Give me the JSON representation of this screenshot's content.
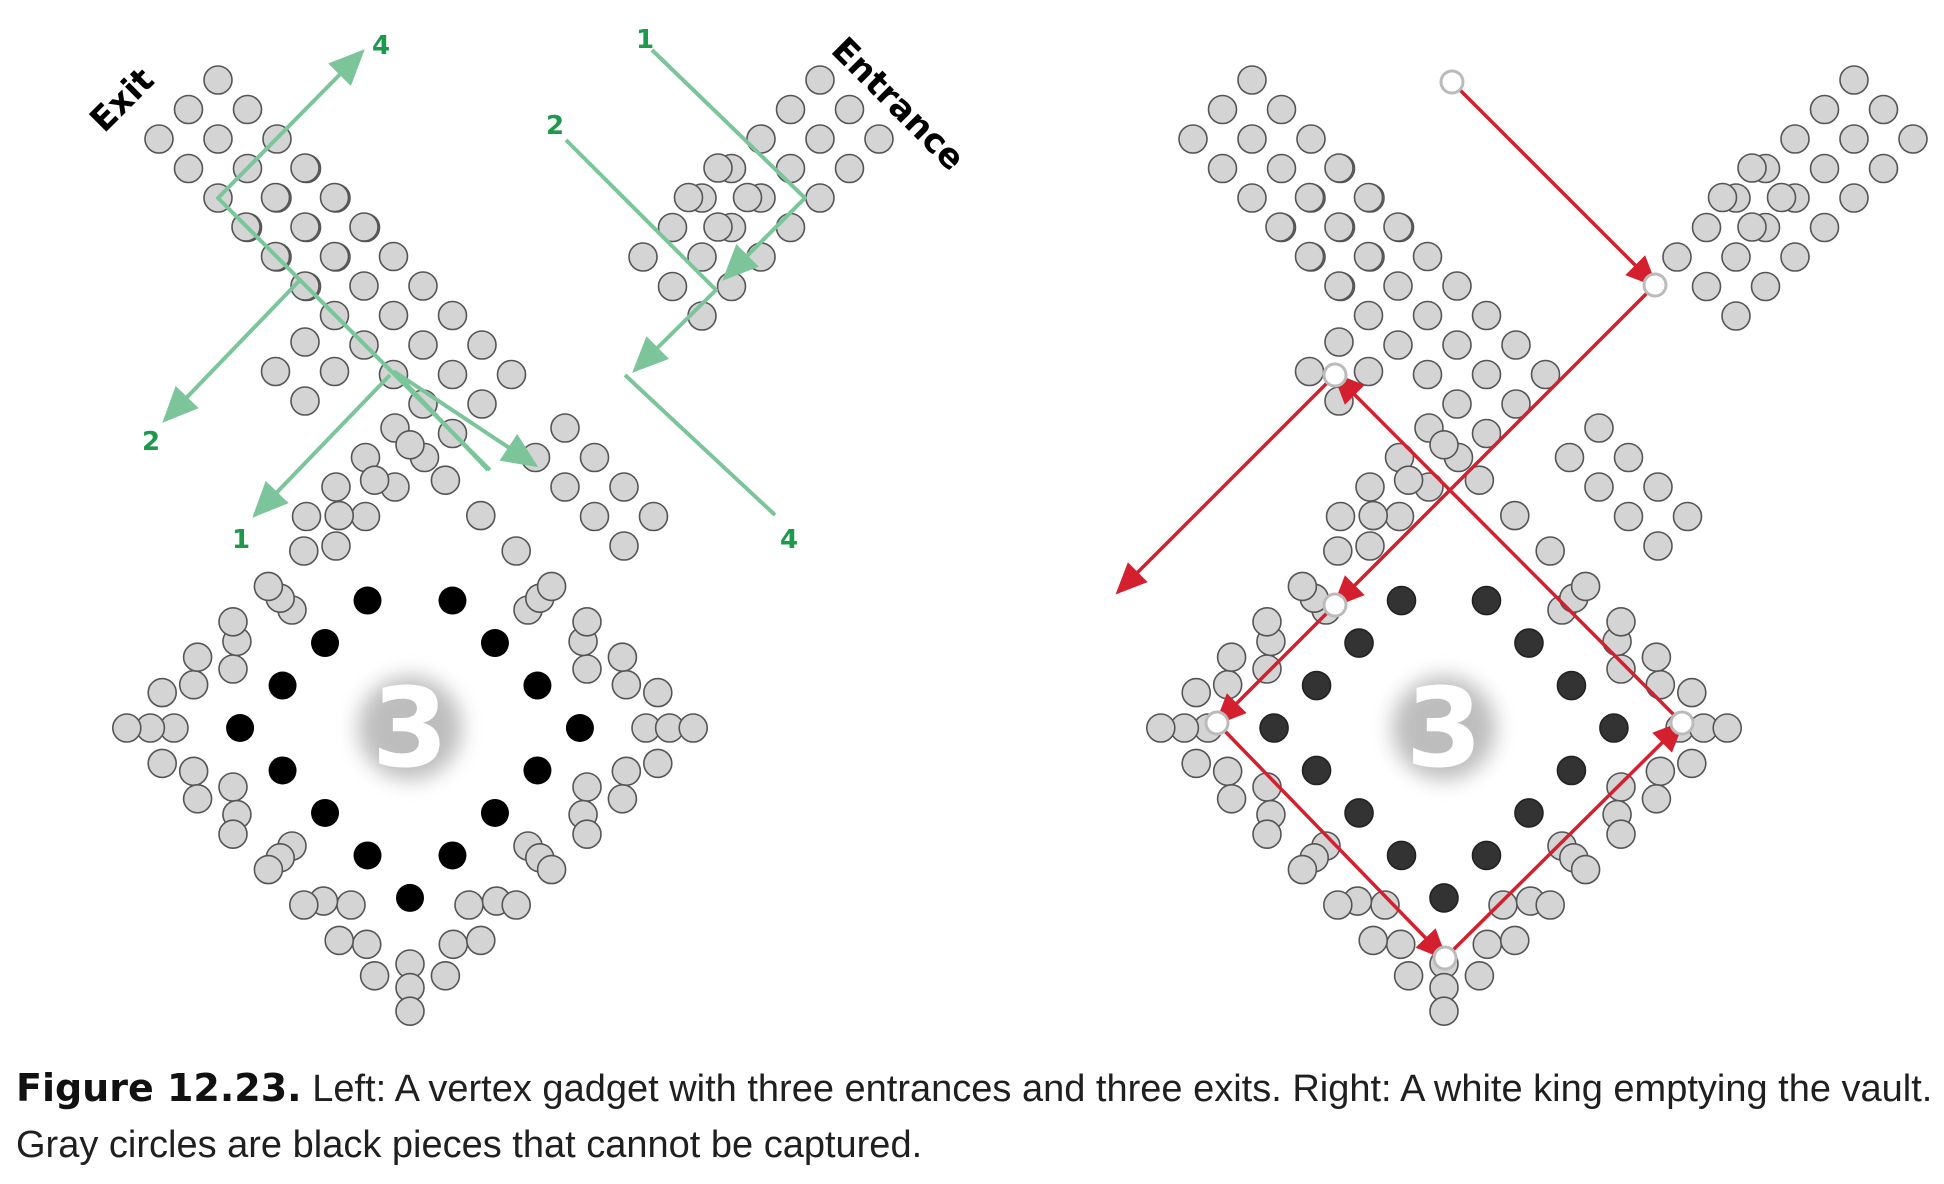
{
  "left_panel": {
    "exit_label": "Exit",
    "entrance_label": "Entrance",
    "vault_number": "3",
    "path_numbers": [
      "1",
      "2",
      "4",
      "2",
      "1",
      "4"
    ]
  },
  "right_panel": {
    "vault_number": "3"
  },
  "colors": {
    "piece_fill": "#d4d4d4",
    "piece_stroke": "#555555",
    "vault_piece": "#000000",
    "entrance_path": "#7cc59a",
    "path_number": "#1a9a4a",
    "king_path": "#d4202e"
  },
  "caption": {
    "label": "Figure 12.23.",
    "text": "Left: A vertex gadget with three entrances and three exits. Right: A white king emptying the vault. Gray circles are black pieces that cannot be captured."
  }
}
